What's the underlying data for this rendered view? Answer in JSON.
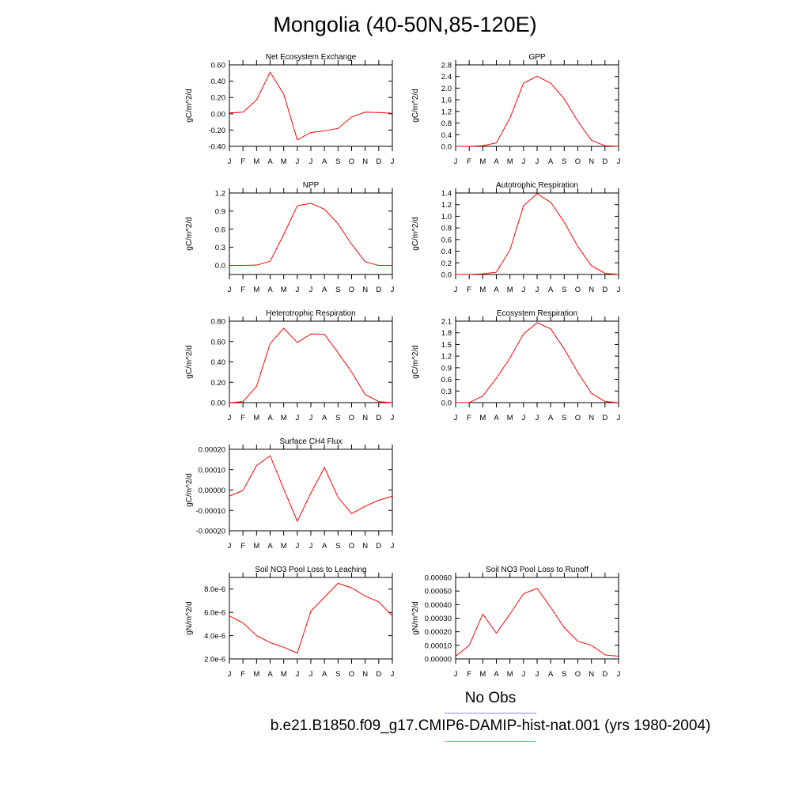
{
  "page": {
    "title": "Mongolia (40-50N,85-120E)",
    "legend": {
      "obs_label": "No Obs",
      "case_label": "b.e21.B1850.f09_g17.CMIP6-DAMIP-hist-nat.001 (yrs 1980-2004)",
      "obs_color": "#8a8aff",
      "case_color": "#ff0000"
    }
  },
  "chart_data": [
    {
      "type": "line",
      "title": "Net Ecosystem Exchange",
      "ylabel": "gC/m^2/d",
      "categories": [
        "J",
        "F",
        "M",
        "A",
        "M",
        "J",
        "J",
        "A",
        "S",
        "O",
        "N",
        "D",
        "J"
      ],
      "ylim": [
        -0.4,
        0.6
      ],
      "yticks": [
        "-0.40",
        "-0.20",
        "0.00",
        "0.20",
        "0.40",
        "0.60"
      ],
      "values": [
        0.01,
        0.02,
        0.17,
        0.51,
        0.24,
        -0.32,
        -0.23,
        -0.21,
        -0.18,
        -0.04,
        0.02,
        0.015,
        0.005
      ],
      "grid": false
    },
    {
      "type": "line",
      "title": "GPP",
      "ylabel": "gC/m^2/d",
      "categories": [
        "J",
        "F",
        "M",
        "A",
        "M",
        "J",
        "J",
        "A",
        "S",
        "O",
        "N",
        "D",
        "J"
      ],
      "ylim": [
        0,
        2.8
      ],
      "yticks": [
        "0.0",
        "0.4",
        "0.8",
        "1.2",
        "1.6",
        "2.0",
        "2.4",
        "2.8"
      ],
      "values": [
        0.0,
        0.0,
        0.02,
        0.12,
        0.97,
        2.17,
        2.41,
        2.17,
        1.63,
        0.86,
        0.21,
        0.02,
        0.0
      ],
      "grid": false
    },
    {
      "type": "line",
      "title": "NPP",
      "ylabel": "gC/m^2/d",
      "categories": [
        "J",
        "F",
        "M",
        "A",
        "M",
        "J",
        "J",
        "A",
        "S",
        "O",
        "N",
        "D",
        "J"
      ],
      "ylim": [
        -0.15,
        1.2
      ],
      "yticks": [
        "0.0",
        "0.3",
        "0.6",
        "0.9",
        "1.2"
      ],
      "ytick_values": [
        0.0,
        0.3,
        0.6,
        0.9,
        1.2
      ],
      "values": [
        0.0,
        0.0,
        0.005,
        0.07,
        0.51,
        0.99,
        1.03,
        0.93,
        0.69,
        0.35,
        0.06,
        0.0,
        0.0
      ],
      "grid": false
    },
    {
      "type": "line",
      "title": "Autotrophic Respiration",
      "ylabel": "gC/m^2/d",
      "categories": [
        "J",
        "F",
        "M",
        "A",
        "M",
        "J",
        "J",
        "A",
        "S",
        "O",
        "N",
        "D",
        "J"
      ],
      "ylim": [
        0,
        1.4
      ],
      "yticks": [
        "0.0",
        "0.2",
        "0.4",
        "0.6",
        "0.8",
        "1.0",
        "1.2",
        "1.4"
      ],
      "values": [
        0.0,
        0.0,
        0.01,
        0.04,
        0.42,
        1.18,
        1.39,
        1.24,
        0.9,
        0.48,
        0.15,
        0.02,
        0.0
      ],
      "grid": false
    },
    {
      "type": "line",
      "title": "Heterotrophic Respiration",
      "ylabel": "gC/m^2/d",
      "categories": [
        "J",
        "F",
        "M",
        "A",
        "M",
        "J",
        "J",
        "A",
        "S",
        "O",
        "N",
        "D",
        "J"
      ],
      "ylim": [
        0,
        0.8
      ],
      "yticks": [
        "0.00",
        "0.20",
        "0.40",
        "0.60",
        "0.80"
      ],
      "values": [
        0.0,
        0.01,
        0.16,
        0.58,
        0.73,
        0.59,
        0.675,
        0.67,
        0.49,
        0.3,
        0.08,
        0.01,
        0.0
      ],
      "grid": false
    },
    {
      "type": "line",
      "title": "Ecosystem Respiration",
      "ylabel": "gC/m^2/d",
      "categories": [
        "J",
        "F",
        "M",
        "A",
        "M",
        "J",
        "J",
        "A",
        "S",
        "O",
        "N",
        "D",
        "J"
      ],
      "ylim": [
        0,
        2.1
      ],
      "yticks": [
        "0.0",
        "0.3",
        "0.6",
        "0.9",
        "1.2",
        "1.5",
        "1.8",
        "2.1"
      ],
      "values": [
        0.0,
        0.0,
        0.17,
        0.63,
        1.15,
        1.77,
        2.06,
        1.9,
        1.38,
        0.78,
        0.24,
        0.03,
        0.0
      ],
      "grid": false
    },
    {
      "type": "line",
      "title": "Surface CH4 Flux",
      "ylabel": "gC/m^2/d",
      "categories": [
        "J",
        "F",
        "M",
        "A",
        "M",
        "J",
        "J",
        "A",
        "S",
        "O",
        "N",
        "D",
        "J"
      ],
      "ylim": [
        -0.0002,
        0.0002
      ],
      "yticks": [
        "-0.00020",
        "-0.00010",
        "0.00000",
        "0.00010",
        "0.00020"
      ],
      "values": [
        -3e-05,
        -2e-06,
        0.00012,
        0.000168,
        5e-06,
        -0.000153,
        -1.5e-05,
        0.00011,
        -3.5e-05,
        -0.000116,
        -8e-05,
        -5e-05,
        -3e-05
      ],
      "grid": false
    },
    {
      "type": "line",
      "title": "Soil NO3 Pool Loss to Leaching",
      "ylabel": "gN/m^2/d",
      "categories": [
        "J",
        "F",
        "M",
        "A",
        "M",
        "J",
        "J",
        "A",
        "S",
        "O",
        "N",
        "D",
        "J"
      ],
      "ylim": [
        2e-06,
        9e-06
      ],
      "yticks": [
        "2.0e-6",
        "4.0e-6",
        "6.0e-6",
        "8.0e-6"
      ],
      "ytick_values": [
        2e-06,
        4e-06,
        6e-06,
        8e-06
      ],
      "values": [
        5.7e-06,
        5.1e-06,
        4e-06,
        3.4e-06,
        3e-06,
        2.5e-06,
        6.1e-06,
        7.3e-06,
        8.5e-06,
        8.1e-06,
        7.4e-06,
        6.9e-06,
        5.7e-06
      ],
      "grid": false
    },
    {
      "type": "line",
      "title": "Soil NO3 Pool Loss to Runoff",
      "ylabel": "gN/m^2/d",
      "categories": [
        "J",
        "F",
        "M",
        "A",
        "M",
        "J",
        "J",
        "A",
        "S",
        "O",
        "N",
        "D",
        "J"
      ],
      "ylim": [
        0,
        0.0006
      ],
      "yticks": [
        "0.00000",
        "0.00010",
        "0.00020",
        "0.00030",
        "0.00040",
        "0.00050",
        "0.00060"
      ],
      "values": [
        2e-05,
        0.0001,
        0.00033,
        0.00019,
        0.00033,
        0.00048,
        0.00052,
        0.00038,
        0.00023,
        0.00013,
        0.0001,
        3e-05,
        2e-05
      ],
      "grid": false
    }
  ]
}
